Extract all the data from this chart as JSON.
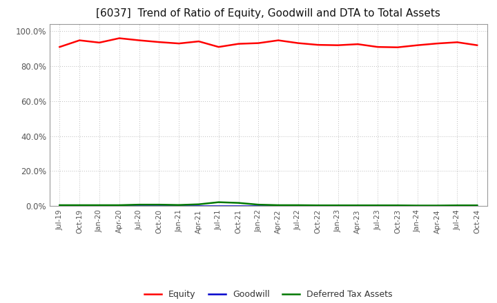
{
  "title": "[6037]  Trend of Ratio of Equity, Goodwill and DTA to Total Assets",
  "title_fontsize": 11,
  "title_fontweight": "normal",
  "background_color": "#ffffff",
  "plot_bg_color": "#ffffff",
  "grid_color": "#bbbbbb",
  "ylim": [
    0.0,
    1.04
  ],
  "yticks": [
    0.0,
    0.2,
    0.4,
    0.6,
    0.8,
    1.0
  ],
  "x_labels": [
    "Jul-19",
    "Oct-19",
    "Jan-20",
    "Apr-20",
    "Jul-20",
    "Oct-20",
    "Jan-21",
    "Apr-21",
    "Jul-21",
    "Oct-21",
    "Jan-22",
    "Apr-22",
    "Jul-22",
    "Oct-22",
    "Jan-23",
    "Apr-23",
    "Jul-23",
    "Oct-23",
    "Jan-24",
    "Apr-24",
    "Jul-24",
    "Oct-24"
  ],
  "equity": [
    0.91,
    0.948,
    0.935,
    0.96,
    0.948,
    0.938,
    0.93,
    0.942,
    0.91,
    0.928,
    0.932,
    0.948,
    0.932,
    0.922,
    0.92,
    0.926,
    0.91,
    0.908,
    0.92,
    0.93,
    0.937,
    0.92
  ],
  "goodwill": [
    0.0,
    0.0,
    0.0,
    0.0,
    0.0,
    0.0,
    0.0,
    0.0,
    0.0,
    0.0,
    0.0,
    0.0,
    0.0,
    0.0,
    0.0,
    0.0,
    0.0,
    0.0,
    0.0,
    0.0,
    0.0,
    0.0
  ],
  "dta": [
    0.005,
    0.005,
    0.005,
    0.005,
    0.008,
    0.008,
    0.006,
    0.01,
    0.022,
    0.018,
    0.008,
    0.005,
    0.005,
    0.004,
    0.004,
    0.004,
    0.004,
    0.004,
    0.003,
    0.003,
    0.004,
    0.004
  ],
  "equity_color": "#ff0000",
  "goodwill_color": "#0000cc",
  "dta_color": "#007700",
  "line_width": 1.8,
  "legend_labels": [
    "Equity",
    "Goodwill",
    "Deferred Tax Assets"
  ],
  "tick_label_color": "#555555",
  "spine_color": "#999999"
}
